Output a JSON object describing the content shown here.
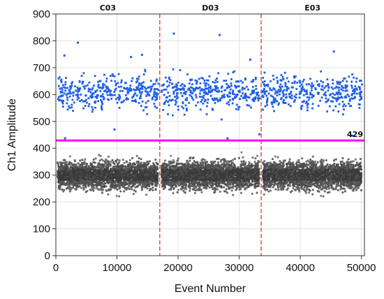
{
  "chart_data": {
    "type": "scatter",
    "title": "",
    "xlabel": "Event Number",
    "ylabel": "Ch1 Amplitude",
    "xlim": [
      0,
      50500
    ],
    "ylim": [
      0,
      900
    ],
    "x_ticks": [
      0,
      10000,
      20000,
      30000,
      40000,
      50000
    ],
    "y_ticks": [
      0,
      100,
      200,
      300,
      400,
      500,
      600,
      700,
      800,
      900
    ],
    "grid": true,
    "threshold": {
      "value": 429,
      "label": "429",
      "color": "#ff00ff"
    },
    "well_dividers": [
      17000,
      33600
    ],
    "wells": [
      {
        "label": "C03",
        "x_center": 8500
      },
      {
        "label": "D03",
        "x_center": 25300
      },
      {
        "label": "E03",
        "x_center": 42000
      }
    ],
    "series": [
      {
        "cluster": "positive",
        "color": "#1f5fe8",
        "y_center": 610,
        "y_spread": 70,
        "count_per_well": 350
      },
      {
        "cluster": "negative",
        "color": "#555555",
        "y_center": 300,
        "y_spread": 35,
        "count_per_well": 5000
      }
    ],
    "outliers": [
      {
        "x": 19300,
        "y": 827
      },
      {
        "x": 26800,
        "y": 822
      },
      {
        "x": 3600,
        "y": 793
      },
      {
        "x": 12300,
        "y": 740
      },
      {
        "x": 14100,
        "y": 748
      },
      {
        "x": 31800,
        "y": 730
      },
      {
        "x": 1400,
        "y": 745
      },
      {
        "x": 45500,
        "y": 760
      },
      {
        "x": 48500,
        "y": 447
      },
      {
        "x": 28100,
        "y": 437
      },
      {
        "x": 1500,
        "y": 437
      },
      {
        "x": 33300,
        "y": 452
      },
      {
        "x": 9600,
        "y": 470
      }
    ]
  }
}
